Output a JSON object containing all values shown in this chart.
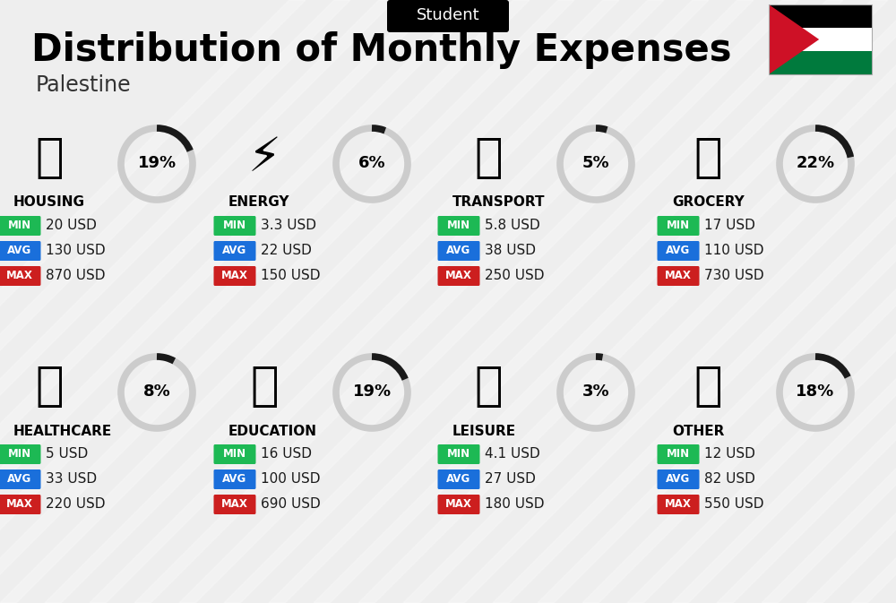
{
  "title": "Distribution of Monthly Expenses",
  "subtitle": "Palestine",
  "header_label": "Student",
  "bg_color": "#eeeeee",
  "categories": [
    {
      "name": "HOUSING",
      "pct": 19,
      "min_val": "20 USD",
      "avg_val": "130 USD",
      "max_val": "870 USD",
      "col": 0,
      "row": 0
    },
    {
      "name": "ENERGY",
      "pct": 6,
      "min_val": "3.3 USD",
      "avg_val": "22 USD",
      "max_val": "150 USD",
      "col": 1,
      "row": 0
    },
    {
      "name": "TRANSPORT",
      "pct": 5,
      "min_val": "5.8 USD",
      "avg_val": "38 USD",
      "max_val": "250 USD",
      "col": 2,
      "row": 0
    },
    {
      "name": "GROCERY",
      "pct": 22,
      "min_val": "17 USD",
      "avg_val": "110 USD",
      "max_val": "730 USD",
      "col": 3,
      "row": 0
    },
    {
      "name": "HEALTHCARE",
      "pct": 8,
      "min_val": "5 USD",
      "avg_val": "33 USD",
      "max_val": "220 USD",
      "col": 0,
      "row": 1
    },
    {
      "name": "EDUCATION",
      "pct": 19,
      "min_val": "16 USD",
      "avg_val": "100 USD",
      "max_val": "690 USD",
      "col": 1,
      "row": 1
    },
    {
      "name": "LEISURE",
      "pct": 3,
      "min_val": "4.1 USD",
      "avg_val": "27 USD",
      "max_val": "180 USD",
      "col": 2,
      "row": 1
    },
    {
      "name": "OTHER",
      "pct": 18,
      "min_val": "12 USD",
      "avg_val": "82 USD",
      "max_val": "550 USD",
      "col": 3,
      "row": 1
    }
  ],
  "min_color": "#1db954",
  "avg_color": "#1a6fdb",
  "max_color": "#cc1f1f",
  "circle_dark": "#1a1a1a",
  "circle_light": "#cccccc",
  "flag_black": "#000000",
  "flag_white": "#ffffff",
  "flag_green": "#007A3D",
  "flag_red": "#CE1126"
}
